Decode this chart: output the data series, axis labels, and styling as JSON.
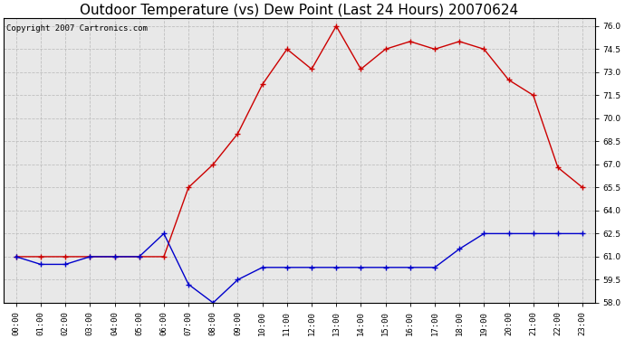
{
  "title": "Outdoor Temperature (vs) Dew Point (Last 24 Hours) 20070624",
  "copyright_text": "Copyright 2007 Cartronics.com",
  "hours": [
    0,
    1,
    2,
    3,
    4,
    5,
    6,
    7,
    8,
    9,
    10,
    11,
    12,
    13,
    14,
    15,
    16,
    17,
    18,
    19,
    20,
    21,
    22,
    23
  ],
  "temp": [
    61.0,
    61.0,
    61.0,
    61.0,
    61.0,
    61.0,
    61.0,
    65.5,
    67.0,
    69.0,
    72.2,
    74.5,
    73.2,
    76.0,
    73.2,
    74.5,
    75.0,
    74.5,
    75.0,
    74.5,
    72.5,
    71.5,
    66.8,
    65.5
  ],
  "dewpoint": [
    61.0,
    60.5,
    60.5,
    61.0,
    61.0,
    61.0,
    62.5,
    59.2,
    58.0,
    59.5,
    60.3,
    60.3,
    60.3,
    60.3,
    60.3,
    60.3,
    60.3,
    60.3,
    61.5,
    62.5,
    62.5,
    62.5,
    62.5,
    62.5
  ],
  "temp_color": "#cc0000",
  "dew_color": "#0000cc",
  "bg_color": "#ffffff",
  "plot_bg_color": "#e8e8e8",
  "grid_color": "#bbbbbb",
  "ylim_min": 58.0,
  "ylim_max": 76.5,
  "yticks": [
    58.0,
    59.5,
    61.0,
    62.5,
    64.0,
    65.5,
    67.0,
    68.5,
    70.0,
    71.5,
    73.0,
    74.5,
    76.0
  ],
  "title_fontsize": 11,
  "copyright_fontsize": 6.5,
  "tick_fontsize": 6.5
}
